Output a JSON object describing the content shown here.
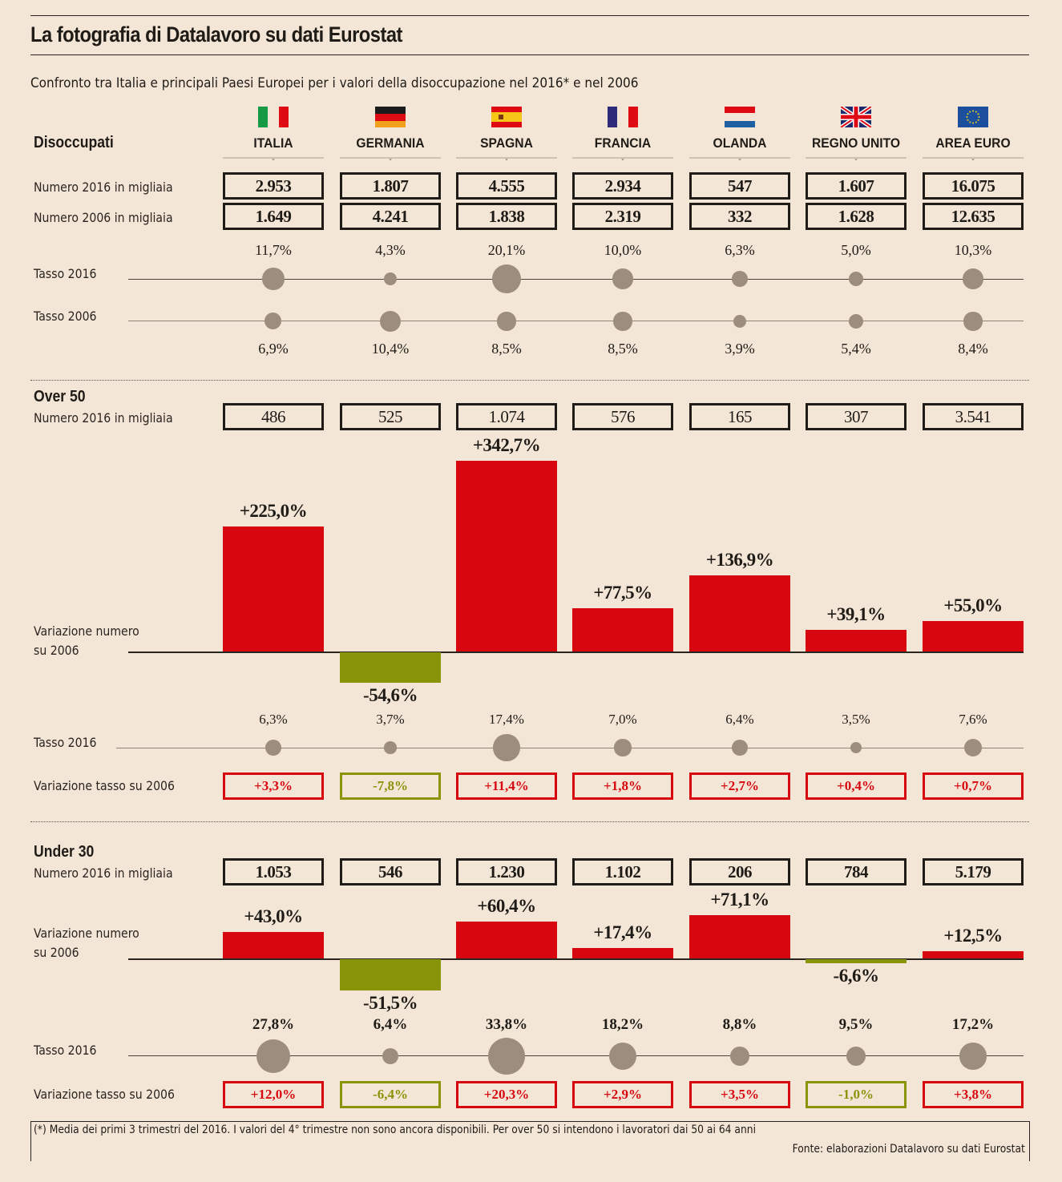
{
  "title": "La fotografia di Datalavoro su dati Eurostat",
  "subtitle": "Confronto tra Italia e principali Paesi Europei per i valori della disoccupazione nel 2016* e nel 2006",
  "colors": {
    "background": "#f4e6d6",
    "positive": "#d7060f",
    "negative": "#899409",
    "dot": "#9c8d7d",
    "text": "#1f1b17"
  },
  "countries": [
    {
      "name": "ITALIA",
      "flag": "italy-flag"
    },
    {
      "name": "GERMANIA",
      "flag": "germany-flag"
    },
    {
      "name": "SPAGNA",
      "flag": "spain-flag"
    },
    {
      "name": "FRANCIA",
      "flag": "france-flag"
    },
    {
      "name": "OLANDA",
      "flag": "netherlands-flag"
    },
    {
      "name": "REGNO UNITO",
      "flag": "uk-flag"
    },
    {
      "name": "AREA EURO",
      "flag": "eu-flag"
    }
  ],
  "disoccupati": {
    "heading": "Disoccupati",
    "num2016_label": "Numero 2016 in migliaia",
    "num2006_label": "Numero 2006 in migliaia",
    "tasso2016_label": "Tasso 2016",
    "tasso2006_label": "Tasso 2006",
    "num2016": [
      "2.953",
      "1.807",
      "4.555",
      "2.934",
      "547",
      "1.607",
      "16.075"
    ],
    "num2006": [
      "1.649",
      "4.241",
      "1.838",
      "2.319",
      "332",
      "1.628",
      "12.635"
    ],
    "tasso2016": [
      "11,7%",
      "4,3%",
      "20,1%",
      "10,0%",
      "6,3%",
      "5,0%",
      "10,3%"
    ],
    "tasso2006": [
      "6,9%",
      "10,4%",
      "8,5%",
      "8,5%",
      "3,9%",
      "5,4%",
      "8,4%"
    ]
  },
  "over50": {
    "heading": "Over 50",
    "num2016_label": "Numero 2016 in migliaia",
    "variazione_label_1": "Variazione numero",
    "variazione_label_2": "su 2006",
    "tasso2016_label": "Tasso 2016",
    "var_tasso_label": "Variazione tasso su 2006",
    "num2016": [
      "486",
      "525",
      "1.074",
      "576",
      "165",
      "307",
      "3.541"
    ],
    "variazione_labels": [
      "+225,0%",
      "-54,6%",
      "+342,7%",
      "+77,5%",
      "+136,9%",
      "+39,1%",
      "+55,0%"
    ],
    "tasso2016": [
      "6,3%",
      "3,7%",
      "17,4%",
      "7,0%",
      "6,4%",
      "3,5%",
      "7,6%"
    ],
    "var_tasso": [
      "+3,3%",
      "-7,8%",
      "+11,4%",
      "+1,8%",
      "+2,7%",
      "+0,4%",
      "+0,7%"
    ]
  },
  "under30": {
    "heading": "Under 30",
    "num2016_label": "Numero 2016 in migliaia",
    "variazione_label_1": "Variazione numero",
    "variazione_label_2": "su 2006",
    "tasso2016_label": "Tasso 2016",
    "var_tasso_label": "Variazione tasso su 2006",
    "num2016": [
      "1.053",
      "546",
      "1.230",
      "1.102",
      "206",
      "784",
      "5.179"
    ],
    "variazione_labels": [
      "+43,0%",
      "-51,5%",
      "+60,4%",
      "+17,4%",
      "+71,1%",
      "-6,6%",
      "+12,5%"
    ],
    "tasso2016": [
      "27,8%",
      "6,4%",
      "33,8%",
      "18,2%",
      "8,8%",
      "9,5%",
      "17,2%"
    ],
    "var_tasso": [
      "+12,0%",
      "-6,4%",
      "+20,3%",
      "+2,9%",
      "+3,5%",
      "-1,0%",
      "+3,8%"
    ]
  },
  "footnote": "(*) Media dei primi 3 trimestri del 2016. I valori del 4° trimestre non sono ancora disponibili. Per over 50 si intendono i lavoratori dai 50 ai 64 anni",
  "source": "Fonte: elaborazioni Datalavoro su dati Eurostat",
  "chart_data": [
    {
      "type": "bubble",
      "title": "Disoccupati - Tasso 2016 / Tasso 2006",
      "categories": [
        "ITALIA",
        "GERMANIA",
        "SPAGNA",
        "FRANCIA",
        "OLANDA",
        "REGNO UNITO",
        "AREA EURO"
      ],
      "series": [
        {
          "name": "Tasso 2016",
          "values": [
            11.7,
            4.3,
            20.1,
            10.0,
            6.3,
            5.0,
            10.3
          ]
        },
        {
          "name": "Tasso 2006",
          "values": [
            6.9,
            10.4,
            8.5,
            8.5,
            3.9,
            5.4,
            8.4
          ]
        }
      ],
      "unit": "%"
    },
    {
      "type": "bar",
      "title": "Over 50 - Variazione numero su 2006",
      "categories": [
        "ITALIA",
        "GERMANIA",
        "SPAGNA",
        "FRANCIA",
        "OLANDA",
        "REGNO UNITO",
        "AREA EURO"
      ],
      "values": [
        225.0,
        -54.6,
        342.7,
        77.5,
        136.9,
        39.1,
        55.0
      ],
      "unit": "%"
    },
    {
      "type": "bubble",
      "title": "Over 50 - Tasso 2016",
      "categories": [
        "ITALIA",
        "GERMANIA",
        "SPAGNA",
        "FRANCIA",
        "OLANDA",
        "REGNO UNITO",
        "AREA EURO"
      ],
      "values": [
        6.3,
        3.7,
        17.4,
        7.0,
        6.4,
        3.5,
        7.6
      ],
      "unit": "%"
    },
    {
      "type": "bar",
      "title": "Under 30 - Variazione numero su 2006",
      "categories": [
        "ITALIA",
        "GERMANIA",
        "SPAGNA",
        "FRANCIA",
        "OLANDA",
        "REGNO UNITO",
        "AREA EURO"
      ],
      "values": [
        43.0,
        -51.5,
        60.4,
        17.4,
        71.1,
        -6.6,
        12.5
      ],
      "unit": "%"
    },
    {
      "type": "bubble",
      "title": "Under 30 - Tasso 2016",
      "categories": [
        "ITALIA",
        "GERMANIA",
        "SPAGNA",
        "FRANCIA",
        "OLANDA",
        "REGNO UNITO",
        "AREA EURO"
      ],
      "values": [
        27.8,
        6.4,
        33.8,
        18.2,
        8.8,
        9.5,
        17.2
      ],
      "unit": "%"
    }
  ]
}
